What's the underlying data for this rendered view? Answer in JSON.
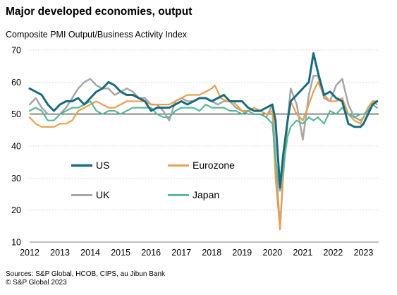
{
  "title": "Major developed economies, output",
  "subtitle": "Composite PMI Output/Business Activity Index",
  "footer": {
    "sources": "Sources: S&P Global, HCOB, CIPS, au Jibun Bank",
    "copyright": "© S&P Global 2023"
  },
  "chart_data": {
    "type": "line",
    "title": "Major developed economies, output",
    "ylabel": "Composite PMI Output/Business Activity Index",
    "ylim": [
      10,
      70
    ],
    "yticks": [
      10,
      20,
      30,
      40,
      50,
      60,
      70
    ],
    "xlim": [
      2012,
      2023.5
    ],
    "xticks": [
      "2012",
      "2013",
      "2014",
      "2015",
      "2016",
      "2017",
      "2018",
      "2019",
      "2020",
      "2021",
      "2022",
      "2023"
    ],
    "grid": true,
    "reference_line": 50,
    "legend": "inside-center",
    "series": [
      {
        "name": "US",
        "color": "#1a6a80",
        "points": [
          [
            2012.0,
            58
          ],
          [
            2012.2,
            57
          ],
          [
            2012.4,
            56
          ],
          [
            2012.6,
            53
          ],
          [
            2012.8,
            51
          ],
          [
            2013.0,
            53
          ],
          [
            2013.2,
            54
          ],
          [
            2013.4,
            54
          ],
          [
            2013.6,
            55
          ],
          [
            2013.8,
            53
          ],
          [
            2014.0,
            55
          ],
          [
            2014.2,
            57
          ],
          [
            2014.4,
            58
          ],
          [
            2014.6,
            60
          ],
          [
            2014.8,
            59
          ],
          [
            2015.0,
            57
          ],
          [
            2015.2,
            56
          ],
          [
            2015.4,
            56
          ],
          [
            2015.6,
            55
          ],
          [
            2015.8,
            54
          ],
          [
            2016.0,
            51
          ],
          [
            2016.2,
            52
          ],
          [
            2016.4,
            52
          ],
          [
            2016.6,
            52
          ],
          [
            2016.8,
            53
          ],
          [
            2017.0,
            54
          ],
          [
            2017.2,
            53
          ],
          [
            2017.4,
            54
          ],
          [
            2017.6,
            55
          ],
          [
            2017.8,
            55
          ],
          [
            2018.0,
            54
          ],
          [
            2018.2,
            55
          ],
          [
            2018.4,
            56
          ],
          [
            2018.6,
            54
          ],
          [
            2018.8,
            54
          ],
          [
            2019.0,
            54
          ],
          [
            2019.2,
            52
          ],
          [
            2019.4,
            51
          ],
          [
            2019.6,
            51
          ],
          [
            2019.8,
            52
          ],
          [
            2020.0,
            53
          ],
          [
            2020.1,
            48
          ],
          [
            2020.25,
            27
          ],
          [
            2020.35,
            37
          ],
          [
            2020.5,
            48
          ],
          [
            2020.6,
            54
          ],
          [
            2020.8,
            56
          ],
          [
            2021.0,
            58
          ],
          [
            2021.2,
            60
          ],
          [
            2021.35,
            69
          ],
          [
            2021.5,
            63
          ],
          [
            2021.7,
            56
          ],
          [
            2021.9,
            57
          ],
          [
            2022.1,
            55
          ],
          [
            2022.3,
            54
          ],
          [
            2022.5,
            47
          ],
          [
            2022.7,
            46
          ],
          [
            2022.9,
            46
          ],
          [
            2023.0,
            47
          ],
          [
            2023.15,
            50
          ],
          [
            2023.3,
            53
          ],
          [
            2023.45,
            54
          ]
        ]
      },
      {
        "name": "Eurozone",
        "color": "#e8a04c",
        "points": [
          [
            2012.0,
            49
          ],
          [
            2012.2,
            47
          ],
          [
            2012.4,
            46
          ],
          [
            2012.6,
            46
          ],
          [
            2012.8,
            46
          ],
          [
            2013.0,
            47
          ],
          [
            2013.2,
            47
          ],
          [
            2013.4,
            48
          ],
          [
            2013.6,
            51
          ],
          [
            2013.8,
            52
          ],
          [
            2014.0,
            53
          ],
          [
            2014.2,
            54
          ],
          [
            2014.4,
            53
          ],
          [
            2014.6,
            52
          ],
          [
            2014.8,
            52
          ],
          [
            2015.0,
            53
          ],
          [
            2015.2,
            54
          ],
          [
            2015.4,
            54
          ],
          [
            2015.6,
            54
          ],
          [
            2015.8,
            54
          ],
          [
            2016.0,
            53
          ],
          [
            2016.2,
            53
          ],
          [
            2016.4,
            53
          ],
          [
            2016.6,
            53
          ],
          [
            2016.8,
            54
          ],
          [
            2017.0,
            55
          ],
          [
            2017.2,
            56
          ],
          [
            2017.4,
            56
          ],
          [
            2017.6,
            56
          ],
          [
            2017.8,
            57
          ],
          [
            2018.0,
            58
          ],
          [
            2018.1,
            59
          ],
          [
            2018.3,
            55
          ],
          [
            2018.5,
            54
          ],
          [
            2018.7,
            54
          ],
          [
            2018.9,
            52
          ],
          [
            2019.0,
            51
          ],
          [
            2019.2,
            51
          ],
          [
            2019.4,
            52
          ],
          [
            2019.6,
            51
          ],
          [
            2019.8,
            50
          ],
          [
            2020.0,
            51
          ],
          [
            2020.1,
            30
          ],
          [
            2020.25,
            14
          ],
          [
            2020.35,
            32
          ],
          [
            2020.5,
            48
          ],
          [
            2020.6,
            54
          ],
          [
            2020.8,
            50
          ],
          [
            2021.0,
            48
          ],
          [
            2021.2,
            53
          ],
          [
            2021.35,
            57
          ],
          [
            2021.5,
            60
          ],
          [
            2021.7,
            56
          ],
          [
            2021.9,
            54
          ],
          [
            2022.1,
            54
          ],
          [
            2022.3,
            55
          ],
          [
            2022.5,
            50
          ],
          [
            2022.7,
            48
          ],
          [
            2022.9,
            47
          ],
          [
            2023.0,
            49
          ],
          [
            2023.15,
            52
          ],
          [
            2023.3,
            54
          ],
          [
            2023.45,
            53
          ]
        ]
      },
      {
        "name": "UK",
        "color": "#a6a6a6",
        "points": [
          [
            2012.0,
            53
          ],
          [
            2012.2,
            55
          ],
          [
            2012.4,
            52
          ],
          [
            2012.6,
            50
          ],
          [
            2012.8,
            50
          ],
          [
            2013.0,
            50
          ],
          [
            2013.2,
            52
          ],
          [
            2013.4,
            55
          ],
          [
            2013.6,
            58
          ],
          [
            2013.8,
            60
          ],
          [
            2014.0,
            61
          ],
          [
            2014.2,
            59
          ],
          [
            2014.4,
            58
          ],
          [
            2014.6,
            58
          ],
          [
            2014.8,
            56
          ],
          [
            2015.0,
            57
          ],
          [
            2015.2,
            58
          ],
          [
            2015.4,
            57
          ],
          [
            2015.6,
            55
          ],
          [
            2015.8,
            55
          ],
          [
            2016.0,
            53
          ],
          [
            2016.2,
            53
          ],
          [
            2016.4,
            51
          ],
          [
            2016.6,
            48
          ],
          [
            2016.8,
            54
          ],
          [
            2017.0,
            55
          ],
          [
            2017.2,
            54
          ],
          [
            2017.4,
            54
          ],
          [
            2017.6,
            55
          ],
          [
            2017.8,
            55
          ],
          [
            2018.0,
            54
          ],
          [
            2018.2,
            53
          ],
          [
            2018.4,
            54
          ],
          [
            2018.6,
            54
          ],
          [
            2018.8,
            52
          ],
          [
            2019.0,
            51
          ],
          [
            2019.2,
            50
          ],
          [
            2019.4,
            50
          ],
          [
            2019.6,
            50
          ],
          [
            2019.8,
            49
          ],
          [
            2020.0,
            53
          ],
          [
            2020.1,
            37
          ],
          [
            2020.25,
            14
          ],
          [
            2020.35,
            30
          ],
          [
            2020.5,
            48
          ],
          [
            2020.6,
            58
          ],
          [
            2020.8,
            53
          ],
          [
            2021.0,
            42
          ],
          [
            2021.2,
            56
          ],
          [
            2021.35,
            62
          ],
          [
            2021.5,
            62
          ],
          [
            2021.7,
            55
          ],
          [
            2021.9,
            54
          ],
          [
            2022.1,
            59
          ],
          [
            2022.3,
            61
          ],
          [
            2022.5,
            53
          ],
          [
            2022.7,
            49
          ],
          [
            2022.9,
            48
          ],
          [
            2023.0,
            49
          ],
          [
            2023.15,
            52
          ],
          [
            2023.3,
            54
          ],
          [
            2023.45,
            54
          ]
        ]
      },
      {
        "name": "Japan",
        "color": "#5ab89a",
        "points": [
          [
            2012.0,
            51
          ],
          [
            2012.2,
            52
          ],
          [
            2012.4,
            51
          ],
          [
            2012.6,
            48
          ],
          [
            2012.8,
            48
          ],
          [
            2013.0,
            50
          ],
          [
            2013.2,
            51
          ],
          [
            2013.4,
            52
          ],
          [
            2013.6,
            52
          ],
          [
            2013.8,
            53
          ],
          [
            2014.0,
            54
          ],
          [
            2014.2,
            51
          ],
          [
            2014.4,
            50
          ],
          [
            2014.6,
            51
          ],
          [
            2014.8,
            51
          ],
          [
            2015.0,
            50
          ],
          [
            2015.2,
            51
          ],
          [
            2015.4,
            52
          ],
          [
            2015.6,
            52
          ],
          [
            2015.8,
            52
          ],
          [
            2016.0,
            52
          ],
          [
            2016.2,
            50
          ],
          [
            2016.4,
            49
          ],
          [
            2016.6,
            49
          ],
          [
            2016.8,
            51
          ],
          [
            2017.0,
            52
          ],
          [
            2017.2,
            52
          ],
          [
            2017.4,
            52
          ],
          [
            2017.6,
            51
          ],
          [
            2017.8,
            53
          ],
          [
            2018.0,
            52
          ],
          [
            2018.2,
            52
          ],
          [
            2018.4,
            52
          ],
          [
            2018.6,
            51
          ],
          [
            2018.8,
            51
          ],
          [
            2019.0,
            50
          ],
          [
            2019.2,
            51
          ],
          [
            2019.4,
            50
          ],
          [
            2019.6,
            50
          ],
          [
            2019.8,
            49
          ],
          [
            2020.0,
            47
          ],
          [
            2020.1,
            36
          ],
          [
            2020.25,
            26
          ],
          [
            2020.35,
            33
          ],
          [
            2020.5,
            43
          ],
          [
            2020.6,
            46
          ],
          [
            2020.8,
            48
          ],
          [
            2021.0,
            47
          ],
          [
            2021.2,
            49
          ],
          [
            2021.35,
            48
          ],
          [
            2021.5,
            49
          ],
          [
            2021.7,
            47
          ],
          [
            2021.9,
            51
          ],
          [
            2022.1,
            50
          ],
          [
            2022.3,
            52
          ],
          [
            2022.5,
            50
          ],
          [
            2022.7,
            49
          ],
          [
            2022.9,
            50
          ],
          [
            2023.0,
            50
          ],
          [
            2023.15,
            51
          ],
          [
            2023.3,
            53
          ],
          [
            2023.45,
            52
          ]
        ]
      }
    ]
  }
}
